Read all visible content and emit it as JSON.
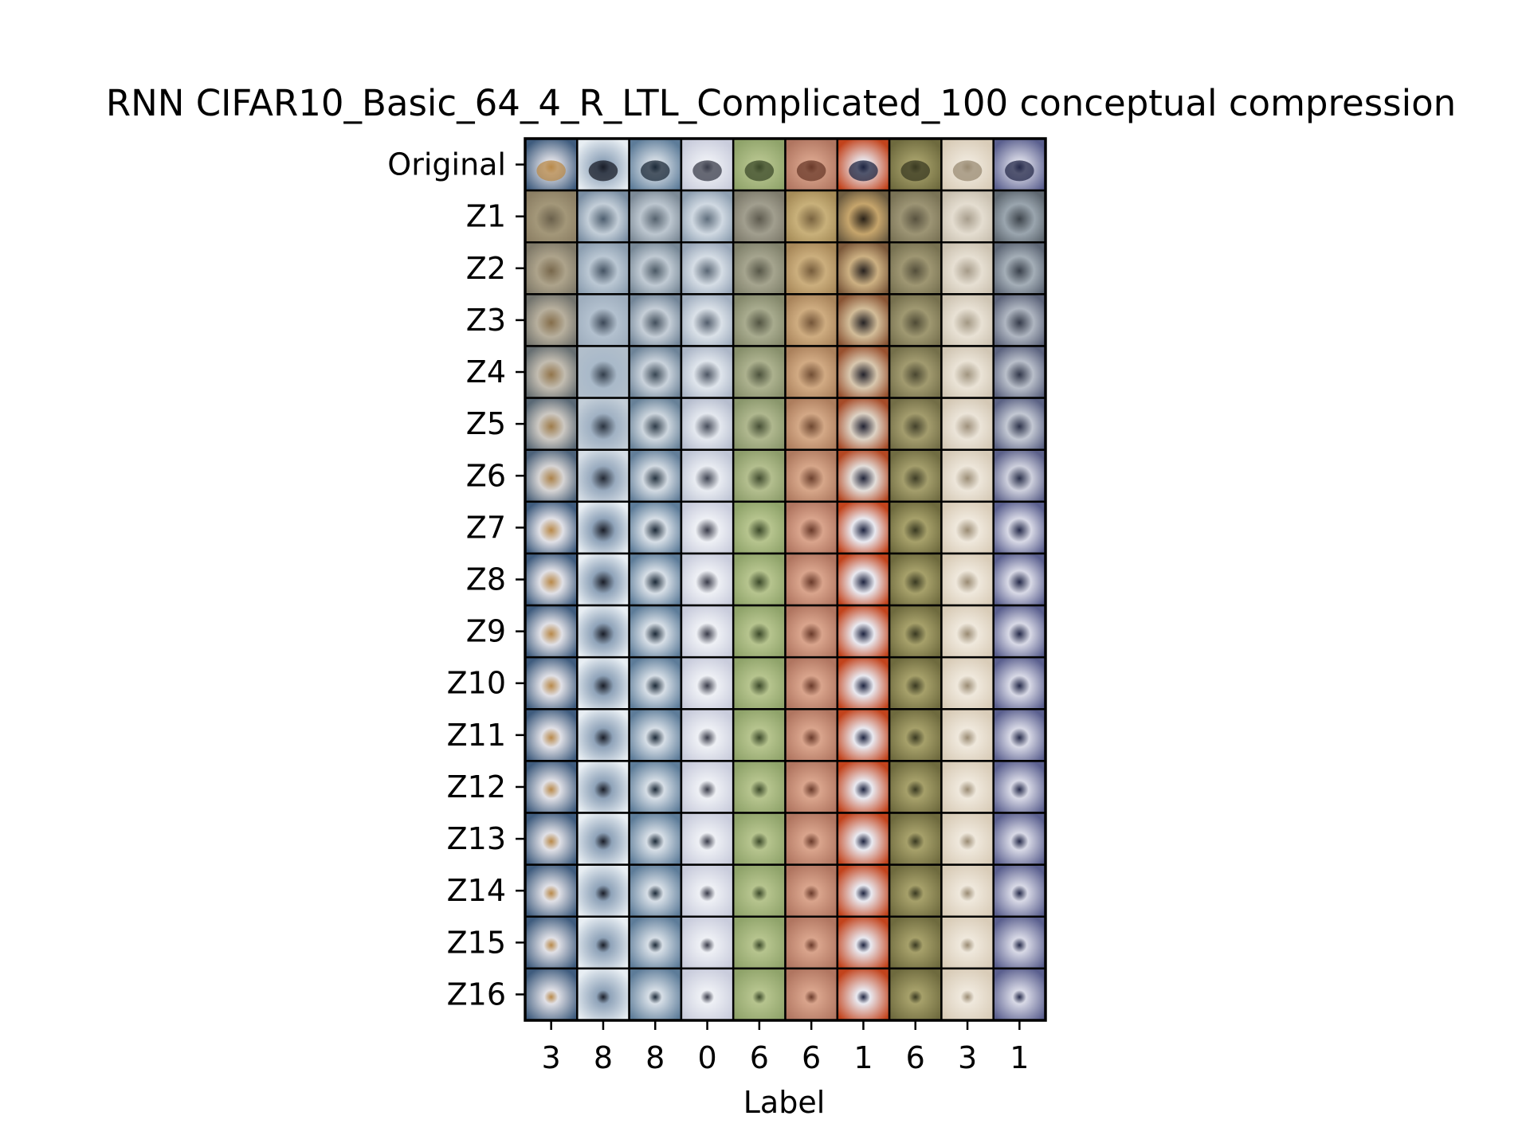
{
  "chart_data": {
    "type": "image-grid",
    "title": "RNN CIFAR10_Basic_64_4_R_LTL_Complicated_100 conceptual compression",
    "xlabel": "Label",
    "ylabel": "",
    "row_labels": [
      "Original",
      "Z1",
      "Z2",
      "Z3",
      "Z4",
      "Z5",
      "Z6",
      "Z7",
      "Z8",
      "Z9",
      "Z10",
      "Z11",
      "Z12",
      "Z13",
      "Z14",
      "Z15",
      "Z16"
    ],
    "column_labels": [
      "3",
      "8",
      "8",
      "0",
      "6",
      "6",
      "1",
      "6",
      "3",
      "1"
    ],
    "column_palettes": [
      {
        "bg": "#3f5c7e",
        "fg": "#b8894a",
        "accent": "#e0e0e6"
      },
      {
        "bg": "#e8eef3",
        "fg": "#1a1e28",
        "accent": "#8fa3b9"
      },
      {
        "bg": "#5d7c99",
        "fg": "#1c2a38",
        "accent": "#d6dee6"
      },
      {
        "bg": "#c9ccdc",
        "fg": "#3a3c4a",
        "accent": "#eef0f5"
      },
      {
        "bg": "#8fa36a",
        "fg": "#3c4a2a",
        "accent": "#b6c48e"
      },
      {
        "bg": "#b07560",
        "fg": "#6a3a2a",
        "accent": "#d9a48c"
      },
      {
        "bg": "#c2431c",
        "fg": "#1e2440",
        "accent": "#e9e9f0"
      },
      {
        "bg": "#6e6a3e",
        "fg": "#3a3a22",
        "accent": "#a6a06a"
      },
      {
        "bg": "#d9ccb8",
        "fg": "#9a8b73",
        "accent": "#efe8dc"
      },
      {
        "bg": "#5a5f8e",
        "fg": "#252a4a",
        "accent": "#d8d9e6"
      }
    ],
    "early_row_palettes": [
      {
        "bg": "#8c7f64",
        "fg": "#6b614c",
        "accent": "#a39779"
      },
      {
        "bg": "#7a8ea3",
        "fg": "#4e5f70",
        "accent": "#c3ced8"
      },
      {
        "bg": "#7c8a97",
        "fg": "#56636f",
        "accent": "#bcc6cf"
      },
      {
        "bg": "#8fa0b2",
        "fg": "#606f7e",
        "accent": "#d0d9e2"
      },
      {
        "bg": "#7e7b6c",
        "fg": "#5e5b4f",
        "accent": "#a19e8e"
      },
      {
        "bg": "#a68c58",
        "fg": "#7a6440",
        "accent": "#c8b07a"
      },
      {
        "bg": "#6d5c40",
        "fg": "#2a2218",
        "accent": "#c6a56c"
      },
      {
        "bg": "#7a7356",
        "fg": "#595340",
        "accent": "#9c9474"
      },
      {
        "bg": "#c9c0b0",
        "fg": "#a89e8d",
        "accent": "#e4ddd0"
      },
      {
        "bg": "#5e6770",
        "fg": "#3e454c",
        "accent": "#9aa5ae"
      }
    ]
  }
}
